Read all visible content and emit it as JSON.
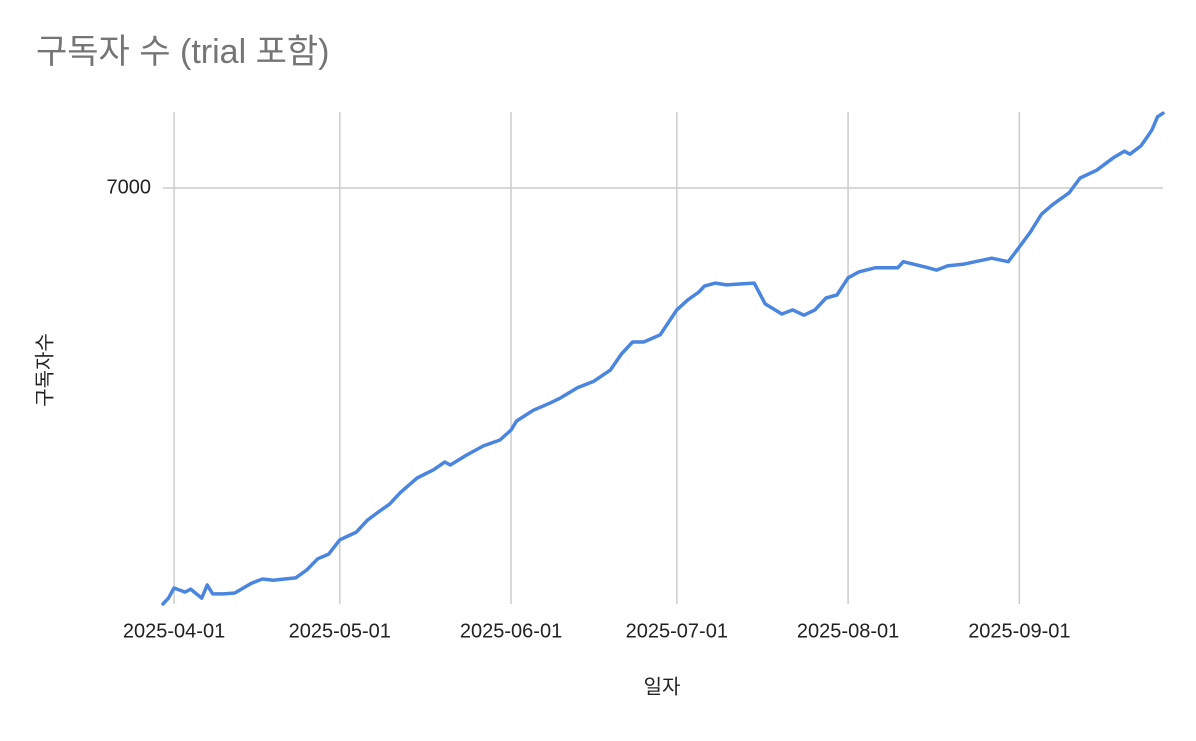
{
  "chart_data": {
    "type": "line",
    "title": "구독자 수 (trial 포함)",
    "x_label": "일자",
    "y_label": "구독자수",
    "x": [
      "2025-03-30",
      "2025-03-31",
      "2025-04-01",
      "2025-04-03",
      "2025-04-04",
      "2025-04-06",
      "2025-04-07",
      "2025-04-08",
      "2025-04-10",
      "2025-04-12",
      "2025-04-15",
      "2025-04-17",
      "2025-04-19",
      "2025-04-21",
      "2025-04-23",
      "2025-04-25",
      "2025-04-27",
      "2025-04-29",
      "2025-05-01",
      "2025-05-04",
      "2025-05-06",
      "2025-05-08",
      "2025-05-10",
      "2025-05-12",
      "2025-05-15",
      "2025-05-18",
      "2025-05-20",
      "2025-05-21",
      "2025-05-24",
      "2025-05-27",
      "2025-05-30",
      "2025-06-01",
      "2025-06-02",
      "2025-06-05",
      "2025-06-08",
      "2025-06-10",
      "2025-06-13",
      "2025-06-16",
      "2025-06-19",
      "2025-06-21",
      "2025-06-23",
      "2025-06-25",
      "2025-06-28",
      "2025-07-01",
      "2025-07-03",
      "2025-07-05",
      "2025-07-06",
      "2025-07-08",
      "2025-07-10",
      "2025-07-13",
      "2025-07-15",
      "2025-07-17",
      "2025-07-20",
      "2025-07-22",
      "2025-07-24",
      "2025-07-26",
      "2025-07-28",
      "2025-07-30",
      "2025-08-01",
      "2025-08-03",
      "2025-08-06",
      "2025-08-10",
      "2025-08-11",
      "2025-08-15",
      "2025-08-17",
      "2025-08-19",
      "2025-08-22",
      "2025-08-24",
      "2025-08-27",
      "2025-08-30",
      "2025-09-01",
      "2025-09-03",
      "2025-09-05",
      "2025-09-07",
      "2025-09-10",
      "2025-09-12",
      "2025-09-15",
      "2025-09-18",
      "2025-09-20",
      "2025-09-21",
      "2025-09-23",
      "2025-09-24",
      "2025-09-25",
      "2025-09-26",
      "2025-09-27"
    ],
    "values": [
      0,
      100,
      270,
      200,
      250,
      100,
      320,
      170,
      170,
      185,
      350,
      420,
      400,
      420,
      440,
      570,
      760,
      840,
      1080,
      1210,
      1410,
      1550,
      1680,
      1880,
      2120,
      2260,
      2390,
      2340,
      2510,
      2660,
      2760,
      2930,
      3080,
      3260,
      3380,
      3470,
      3640,
      3750,
      3940,
      4210,
      4410,
      4410,
      4530,
      4950,
      5120,
      5250,
      5350,
      5400,
      5370,
      5390,
      5400,
      5050,
      4880,
      4950,
      4860,
      4950,
      5150,
      5200,
      5490,
      5590,
      5660,
      5660,
      5760,
      5670,
      5620,
      5690,
      5720,
      5760,
      5820,
      5760,
      6010,
      6260,
      6560,
      6720,
      6920,
      7170,
      7300,
      7510,
      7620,
      7570,
      7710,
      7840,
      7980,
      8200,
      8260
    ],
    "color": "#4a86e0",
    "xlim": [
      "2025-03-30",
      "2025-09-27"
    ],
    "xticks": [
      "2025-04-01",
      "2025-05-01",
      "2025-06-01",
      "2025-07-01",
      "2025-08-01",
      "2025-09-01"
    ],
    "ylim": [
      0,
      8280
    ],
    "yticks": [
      7000
    ],
    "grid": true
  }
}
